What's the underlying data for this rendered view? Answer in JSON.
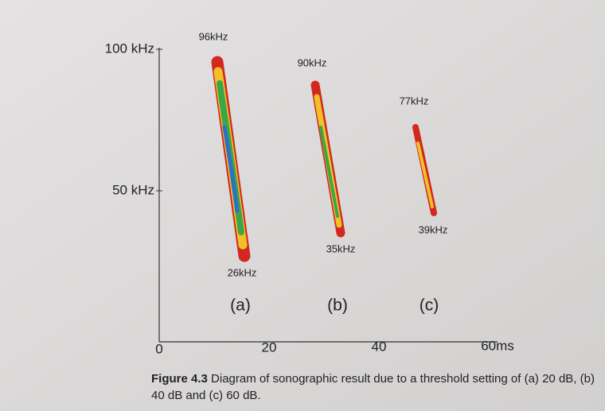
{
  "figure": {
    "y_axis": {
      "ticks": [
        "100 kHz",
        "50 kHz"
      ]
    },
    "x_axis": {
      "ticks": [
        "0",
        "20",
        "40",
        "60ms"
      ]
    },
    "calls": [
      {
        "panel": "(a)",
        "start": "96kHz",
        "end": "26kHz"
      },
      {
        "panel": "(b)",
        "start": "90kHz",
        "end": "35kHz"
      },
      {
        "panel": "(c)",
        "start": "77kHz",
        "end": "39kHz"
      }
    ],
    "caption": {
      "label": "Figure 4.3",
      "text": "Diagram of sonographic result due to a threshold setting of (a) 20 dB, (b) 40 dB and (c) 60 dB."
    }
  }
}
